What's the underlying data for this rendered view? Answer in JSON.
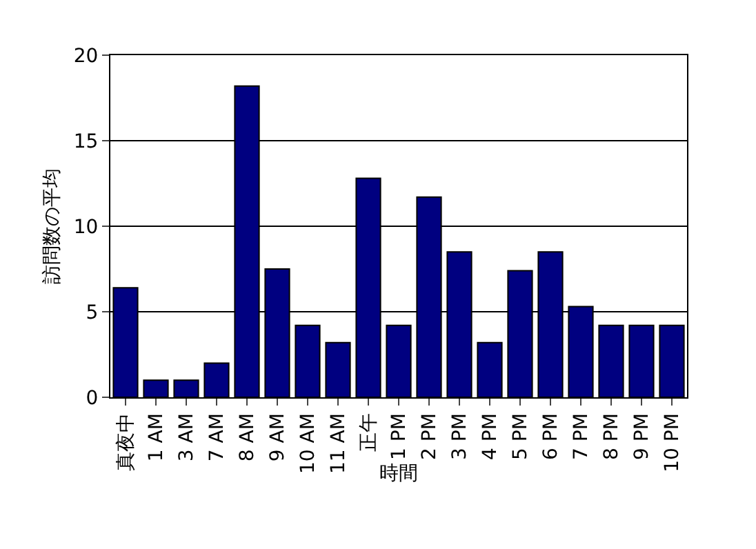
{
  "chart_data": {
    "type": "bar",
    "xlabel": "時間",
    "ylabel": "訪問数の平均",
    "categories": [
      "真夜中",
      "1 AM",
      "3 AM",
      "7 AM",
      "8 AM",
      "9 AM",
      "10 AM",
      "11 AM",
      "正午",
      "1 PM",
      "2 PM",
      "3 PM",
      "4 PM",
      "5 PM",
      "6 PM",
      "7 PM",
      "8 PM",
      "9 PM",
      "10 PM"
    ],
    "values": [
      6.4,
      1,
      1,
      2,
      18.2,
      7.5,
      4.2,
      3.2,
      12.8,
      4.2,
      11.7,
      8.5,
      3.2,
      7.4,
      8.5,
      5.3,
      4.2,
      4.2,
      4.2
    ],
    "color": "#000080",
    "ylim": [
      0,
      20
    ],
    "yticks": [
      0,
      5,
      10,
      15,
      20
    ],
    "grid": "y",
    "legend": false
  }
}
